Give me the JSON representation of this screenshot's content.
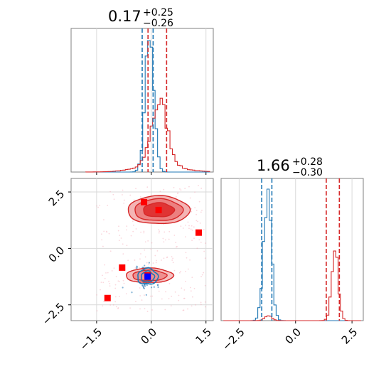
{
  "chart_data": {
    "type": "corner",
    "colors": {
      "blue": "#1f77b4",
      "red": "#d62728",
      "marker_red": "#ff0000",
      "marker_blue": "#0000ff",
      "grid": "#d9d9d9",
      "spine": "#808080"
    },
    "titles": [
      {
        "value": "0.17",
        "upper": "+0.25",
        "lower": "−0.26"
      },
      {
        "value": "1.66",
        "upper": "+0.28",
        "lower": "−0.30"
      }
    ],
    "param1": {
      "range": [
        -2.2,
        1.7
      ],
      "ticks": [
        -1.5,
        0.0,
        1.5
      ],
      "tick_labels": [
        "−1.5",
        "0.0",
        "1.5"
      ]
    },
    "param2": {
      "range": [
        -3.2,
        3.1
      ],
      "ticks": [
        -2.5,
        0.0,
        2.5
      ],
      "tick_labels": [
        "−2.5",
        "0.0",
        "2.5"
      ]
    },
    "param2_hist_range": [
      -3.3,
      3.0
    ],
    "hist1": {
      "blue": {
        "mean": -0.05,
        "sd": 0.12,
        "quantiles": [
          -0.25,
          0.05
        ]
      },
      "red": {
        "mean": 0.22,
        "sd": 0.22,
        "quantiles": [
          -0.09,
          0.42
        ]
      }
    },
    "hist2": {
      "blue": {
        "mean": -1.25,
        "sd": 0.17,
        "quantiles": [
          -1.5,
          -1.05
        ]
      },
      "red": {
        "mean": 1.75,
        "sd": 0.15,
        "red_bump": -1.2,
        "quantiles": [
          1.36,
          1.94
        ]
      }
    },
    "contours": {
      "red_upper": {
        "center": [
          0.2,
          1.7
        ],
        "radii": [
          0.85,
          0.62
        ]
      },
      "red_lower": {
        "center": [
          -0.05,
          -1.2
        ],
        "radii": [
          0.65,
          0.32
        ]
      },
      "blue": {
        "center": [
          -0.1,
          -1.25
        ],
        "radii": [
          0.28,
          0.35
        ]
      }
    },
    "markers_red": [
      {
        "x": -0.2,
        "y": 2.05
      },
      {
        "x": 0.2,
        "y": 1.7
      },
      {
        "x": 1.3,
        "y": 0.7
      },
      {
        "x": -0.8,
        "y": -0.85
      },
      {
        "x": -1.2,
        "y": -2.2
      },
      {
        "x": -0.1,
        "y": -1.2
      }
    ],
    "markers_blue": [
      {
        "x": -0.1,
        "y": -1.25
      }
    ]
  }
}
